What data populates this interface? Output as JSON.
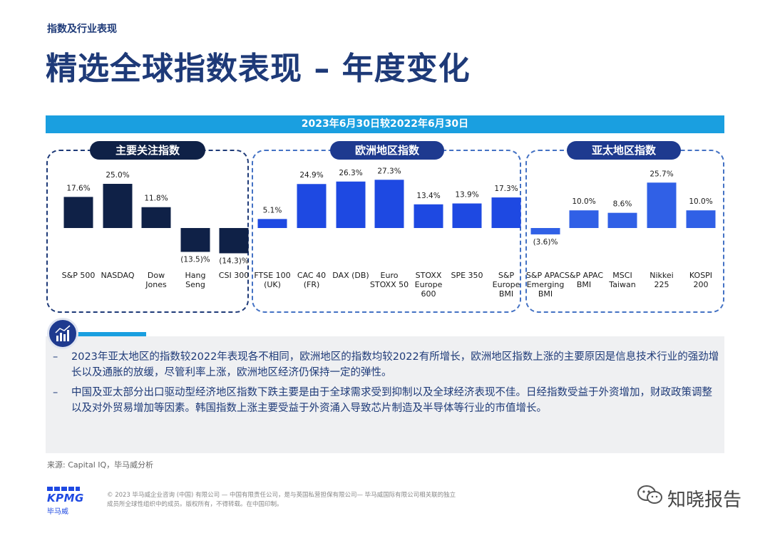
{
  "header": {
    "section_label": "指数及行业表现",
    "title": "精选全球指数表现 – 年度变化"
  },
  "chart_data": {
    "type": "bar",
    "period_label": "2023年6月30日较2022年6月30日",
    "panels": [
      {
        "title": "主要关注指数",
        "categories": [
          "S&P 500",
          "NASDAQ",
          "Dow Jones",
          "Hang Seng",
          "CSI 300"
        ],
        "values": [
          17.6,
          25.0,
          11.8,
          -13.5,
          -14.3
        ],
        "value_labels": [
          "17.6%",
          "25.0%",
          "11.8%",
          "(13.5)%",
          "(14.3)%"
        ],
        "color": "#0f2147"
      },
      {
        "title": "欧洲地区指数",
        "categories": [
          "FTSE 100 (UK)",
          "CAC 40 (FR)",
          "DAX (DB)",
          "Euro STOXX 50",
          "STOXX Europe 600",
          "SPE 350",
          "S&P Europe BMI"
        ],
        "values": [
          5.1,
          24.9,
          26.3,
          27.3,
          13.4,
          13.9,
          17.3
        ],
        "value_labels": [
          "5.1%",
          "24.9%",
          "26.3%",
          "27.3%",
          "13.4%",
          "13.9%",
          "17.3%"
        ],
        "color": "#1e49e2"
      },
      {
        "title": "亚太地区指数",
        "categories": [
          "S&P APAC Emerging BMI",
          "S&P APAC BMI",
          "MSCI Taiwan",
          "Nikkei 225",
          "KOSPI 200"
        ],
        "values": [
          -3.6,
          10.0,
          8.6,
          25.7,
          10.0
        ],
        "value_labels": [
          "(3.6)%",
          "10.0%",
          "8.6%",
          "25.7%",
          "10.0%"
        ],
        "color": "#3060e6"
      }
    ]
  },
  "commentary": {
    "bullets": [
      "2023年亚太地区的指数较2022年表现各不相同，欧洲地区的指数均较2022有所增长，欧洲地区指数上涨的主要原因是信息技术行业的强劲增长以及通胀的放缓，尽管利率上涨，欧洲地区经济仍保持一定的弹性。",
      "中国及亚太部分出口驱动型经济地区指数下跌主要是由于全球需求受到抑制以及全球经济表现不佳。日经指数受益于外资增加，财政政策调整以及对外贸易增加等因素。韩国指数上涨主要受益于外资涌入导致芯片制造及半导体等行业的市值增长。"
    ],
    "dash": "–",
    "icon": "chart-icon"
  },
  "source": "来源: Capital IQ，毕马威分析",
  "footer": {
    "logo_text": "KPMG",
    "logo_cn": "毕马威",
    "legal_text": "© 2023 毕马威企业咨询 (中国) 有限公司 — 中国有限责任公司，是与英国私营担保有限公司— 毕马威国际有限公司相关联的独立成员所全球性组织中的成员。版权所有，不得转载。在中国印制。",
    "watermark": "知晓报告",
    "watermark_icon": "wechat-icon"
  }
}
